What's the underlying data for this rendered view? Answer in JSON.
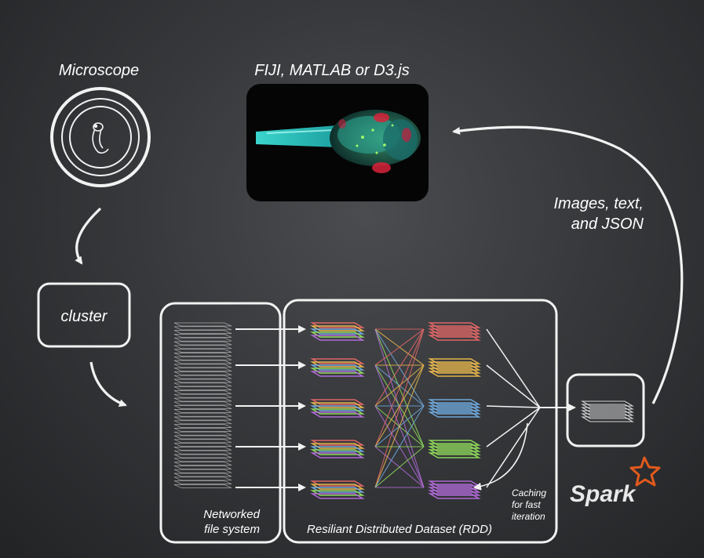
{
  "labels": {
    "microscope": "Microscope",
    "viewer": "FIJI, MATLAB or D3.js",
    "output_line1": "Images, text,",
    "output_line2": "and JSON",
    "cluster": "cluster",
    "nfs_line1": "Networked",
    "nfs_line2": "file system",
    "rdd": "Resiliant Distributed Dataset (RDD)",
    "caching_line1": "Caching",
    "caching_line2": "for fast",
    "caching_line3": "iteration",
    "spark": "Spark"
  },
  "colors": {
    "stroke": "#f2f2f2",
    "spark_star": "#e25a1c",
    "partition_colors": [
      "#e06666",
      "#e6b64c",
      "#6fa8dc",
      "#8ed85a",
      "#b06ad6"
    ]
  },
  "icons": {
    "microscope": "zebrafish-larva-icon",
    "image": "zebrafish-brain-image"
  }
}
